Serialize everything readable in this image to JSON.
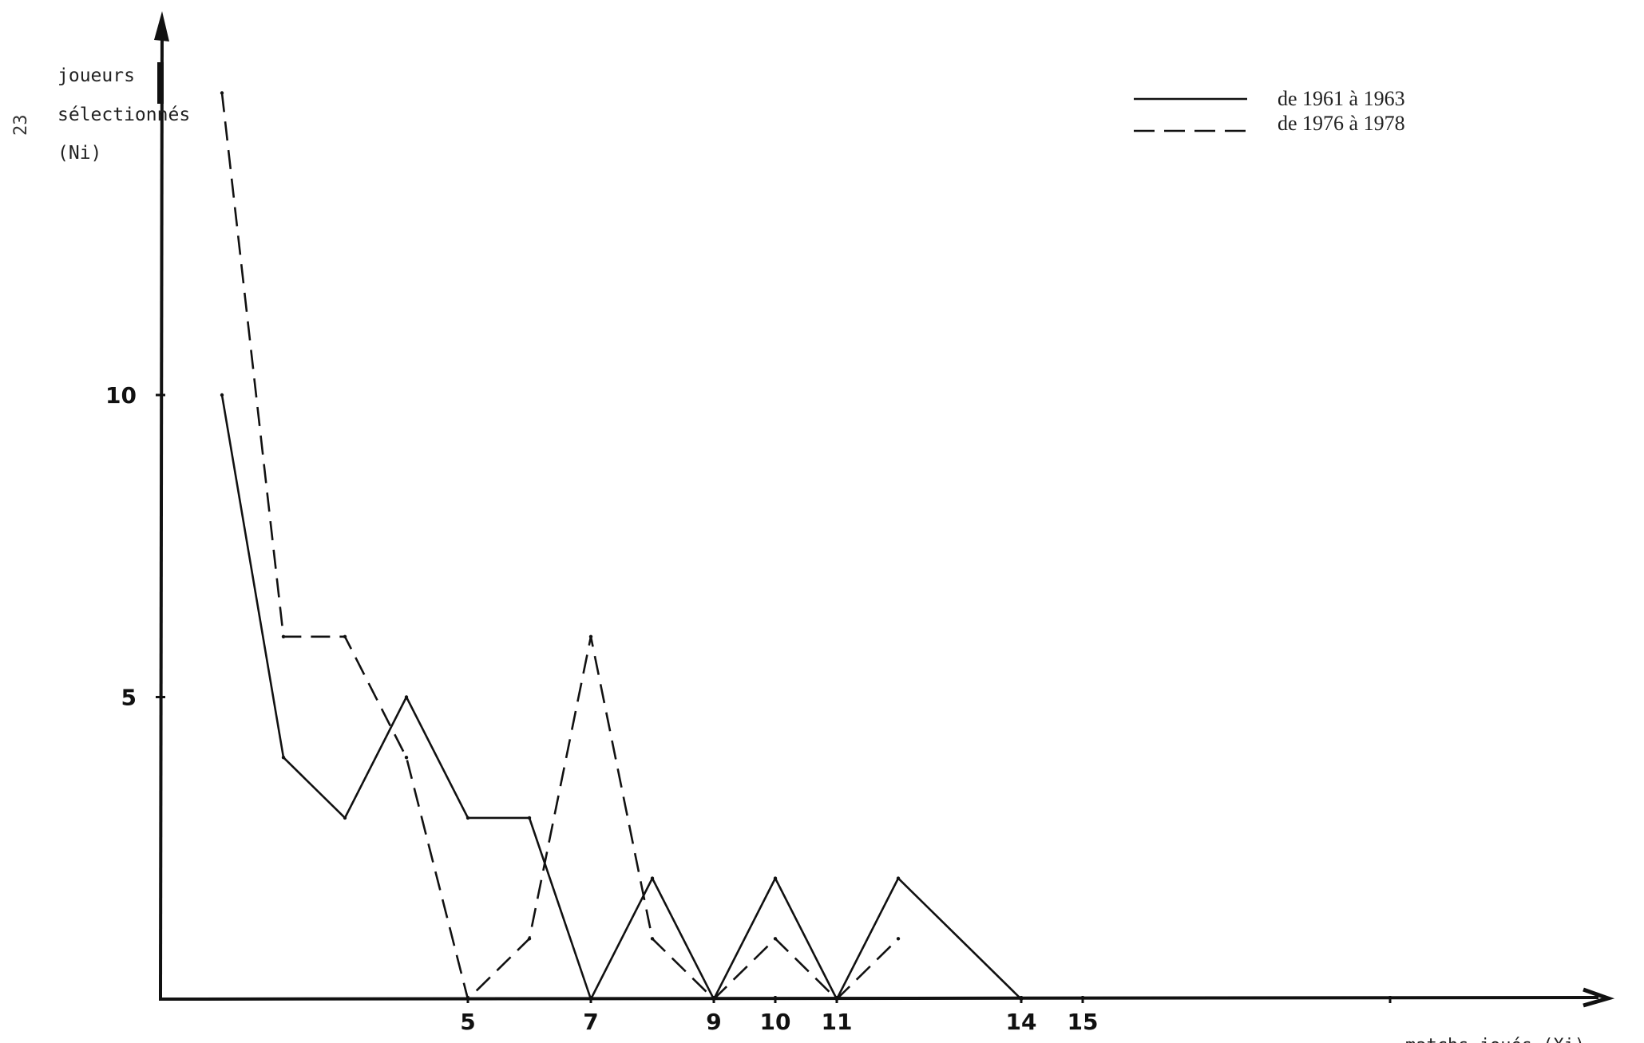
{
  "chart_data": {
    "type": "line",
    "title": "",
    "ylabel_lines": [
      "joueurs",
      "sélectionnés",
      "(Ni)"
    ],
    "xlabel": "matchs joués (Xi)",
    "margin_mark": "23",
    "x": [
      1,
      2,
      3,
      4,
      5,
      6,
      7,
      8,
      9,
      10,
      11,
      12,
      13,
      14,
      15
    ],
    "xlim": [
      0,
      24
    ],
    "ylim": [
      0,
      15.5
    ],
    "x_ticks": [
      5,
      7,
      9,
      10,
      11,
      14,
      15,
      20
    ],
    "x_tick_labels": [
      {
        "x": 5,
        "label": "5"
      },
      {
        "x": 7,
        "label": "7"
      },
      {
        "x": 9,
        "label": "9"
      },
      {
        "x": 10,
        "label": "10"
      },
      {
        "x": 11,
        "label": "11"
      },
      {
        "x": 14,
        "label": "14"
      },
      {
        "x": 15,
        "label": "15"
      }
    ],
    "y_ticks": [
      5,
      10
    ],
    "y_tick_labels": [
      "5",
      "10"
    ],
    "series": [
      {
        "name": "de 1961 à 1963",
        "style": "solid",
        "color": "#111111",
        "points": [
          [
            1,
            10
          ],
          [
            2,
            4
          ],
          [
            3,
            3
          ],
          [
            4,
            5
          ],
          [
            5,
            3
          ],
          [
            6,
            3
          ],
          [
            7,
            0
          ],
          [
            8,
            2
          ],
          [
            9,
            0
          ],
          [
            10,
            2
          ],
          [
            11,
            0
          ],
          [
            12,
            2
          ],
          [
            14,
            0
          ]
        ]
      },
      {
        "name": "de 1976 à 1978",
        "style": "dashed",
        "color": "#111111",
        "points": [
          [
            1,
            15
          ],
          [
            2,
            6
          ],
          [
            3,
            6
          ],
          [
            4,
            4
          ],
          [
            5,
            0
          ],
          [
            6,
            1
          ],
          [
            7,
            6
          ],
          [
            8,
            1
          ],
          [
            9,
            0
          ],
          [
            10,
            1
          ],
          [
            11,
            0
          ],
          [
            12,
            1
          ]
        ]
      }
    ],
    "legend_position": "top-right",
    "grid": false
  }
}
